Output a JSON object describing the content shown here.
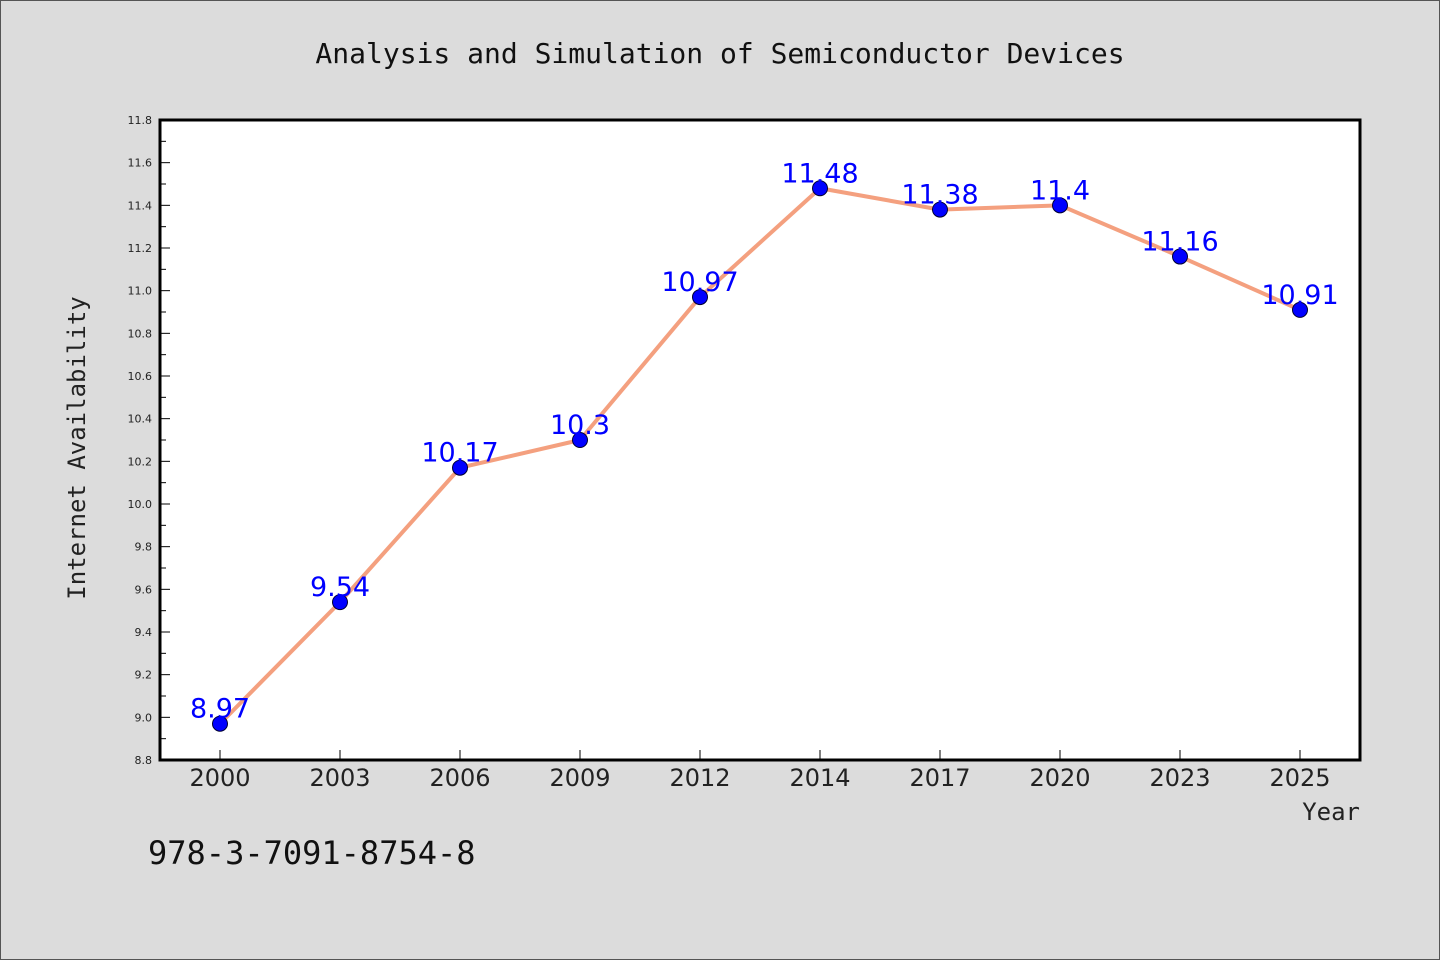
{
  "chart_data": {
    "type": "line",
    "title": "Analysis and Simulation of Semiconductor Devices",
    "xlabel": "Year",
    "ylabel": "Internet Availability",
    "categories": [
      "2000",
      "2003",
      "2006",
      "2009",
      "2012",
      "2014",
      "2017",
      "2020",
      "2023",
      "2025"
    ],
    "series": [
      {
        "values": [
          8.97,
          9.54,
          10.17,
          10.3,
          10.97,
          11.48,
          11.38,
          11.4,
          11.16,
          10.91
        ],
        "data_labels": [
          "8.97",
          "9.54",
          "10.17",
          "10.3",
          "10.97",
          "11.48",
          "11.38",
          "11.4",
          "11.16",
          "10.91"
        ],
        "line_color": "#f4a07f",
        "marker_color": "#0000ff"
      }
    ],
    "ylim": [
      8.8,
      11.8
    ],
    "yticks": [
      "8.8",
      "9.0",
      "9.2",
      "9.4",
      "9.6",
      "9.8",
      "10.0",
      "10.2",
      "10.4",
      "10.6",
      "10.8",
      "11.0",
      "11.2",
      "11.4",
      "11.6",
      "11.8"
    ],
    "grid": false,
    "legend": "none"
  },
  "footer": {
    "isbn": "978-3-7091-8754-8"
  },
  "colors": {
    "background": "#dcdcdc",
    "plot_background": "#ffffff",
    "label_color": "#0000ff"
  }
}
